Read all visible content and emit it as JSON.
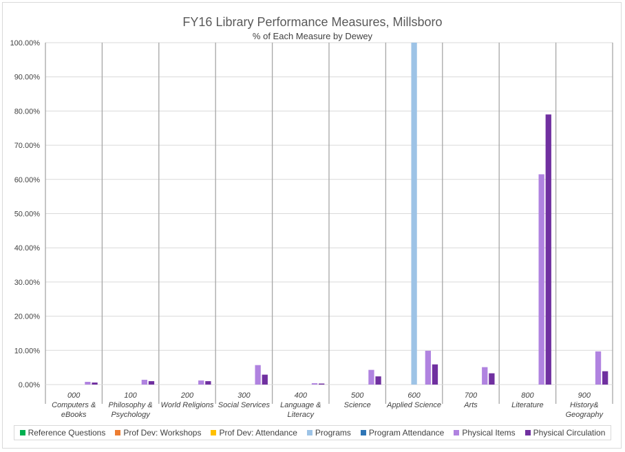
{
  "chart_data": {
    "type": "bar",
    "title": "FY16 Library Performance Measures, Millsboro",
    "subtitle": "% of Each Measure by Dewey",
    "categories": [
      "000 Computers & eBooks",
      "100 Philosophy & Psychology",
      "200 World Religions",
      "300 Social Services",
      "400 Language & Literacy",
      "500 Science",
      "600 Applied Science",
      "700 Arts",
      "800 Literature",
      "900 History& Geography"
    ],
    "category_lines": [
      [
        "000",
        "Computers &",
        "eBooks"
      ],
      [
        "100",
        "Philosophy &",
        "Psychology"
      ],
      [
        "200",
        "World Religions"
      ],
      [
        "300",
        "Social Services"
      ],
      [
        "400",
        "Language &",
        "Literacy"
      ],
      [
        "500",
        "Science"
      ],
      [
        "600",
        "Applied Science"
      ],
      [
        "700",
        "Arts"
      ],
      [
        "800",
        "Literature"
      ],
      [
        "900",
        "History&",
        "Geography"
      ]
    ],
    "y_ticks": [
      "0.00%",
      "10.00%",
      "20.00%",
      "30.00%",
      "40.00%",
      "50.00%",
      "60.00%",
      "70.00%",
      "80.00%",
      "90.00%",
      "100.00%"
    ],
    "ylim": [
      0,
      100
    ],
    "grid": true,
    "legend_position": "bottom",
    "series": [
      {
        "name": "Reference Questions",
        "color": "#00b050",
        "values": [
          0,
          0,
          0,
          0,
          0,
          0,
          0,
          0,
          0,
          0
        ]
      },
      {
        "name": "Prof Dev: Workshops",
        "color": "#ed7d31",
        "values": [
          0,
          0,
          0,
          0,
          0,
          0,
          0,
          0,
          0,
          0
        ]
      },
      {
        "name": "Prof Dev: Attendance",
        "color": "#ffc000",
        "values": [
          0,
          0,
          0,
          0,
          0,
          0,
          0,
          0,
          0,
          0
        ]
      },
      {
        "name": "Programs",
        "color": "#9dc3e6",
        "values": [
          0,
          0,
          0,
          0,
          0,
          0,
          100,
          0,
          0,
          0
        ]
      },
      {
        "name": "Program Attendance",
        "color": "#2e75b6",
        "values": [
          0,
          0,
          0,
          0,
          0,
          0,
          0,
          0,
          0,
          0
        ]
      },
      {
        "name": "Physical Items",
        "color": "#b083e0",
        "values": [
          0.8,
          1.4,
          1.2,
          5.7,
          0.4,
          4.3,
          9.9,
          5.1,
          61.5,
          9.7
        ]
      },
      {
        "name": "Physical Circulation",
        "color": "#7030a0",
        "values": [
          0.6,
          1.0,
          1.0,
          2.9,
          0.3,
          2.4,
          5.9,
          3.3,
          79.0,
          3.9
        ]
      }
    ]
  }
}
